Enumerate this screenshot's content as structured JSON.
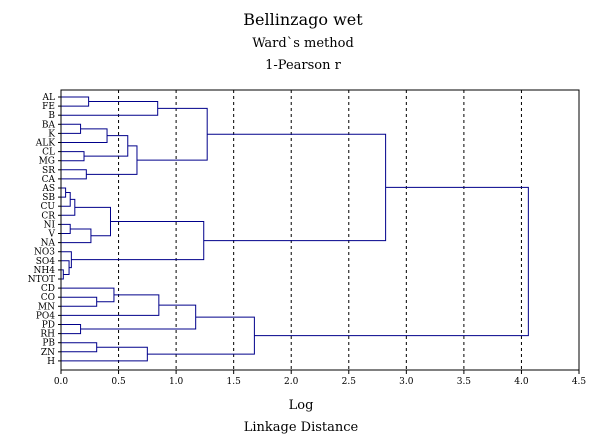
{
  "chart_data": {
    "type": "dendrogram",
    "title": "Bellinzago wet",
    "subtitle": "Ward`s method",
    "subtitle2": "1-Pearson r",
    "xlabel": "Log",
    "xlabel2": "Linkage Distance",
    "xlim": [
      0,
      4.5
    ],
    "xticks": [
      "0.0",
      "0.5",
      "1.0",
      "1.5",
      "2.0",
      "2.5",
      "3.0",
      "3.5",
      "4.0",
      "4.5"
    ],
    "grid": "vertical-dashed",
    "line_color": "#00008B",
    "leaves": [
      "AL",
      "FE",
      "B",
      "BA",
      "K",
      "ALK",
      "CL",
      "MG",
      "SR",
      "CA",
      "AS",
      "SB",
      "CU",
      "CR",
      "NI",
      "V",
      "NA",
      "NO3",
      "SO4",
      "NH4",
      "NTOT",
      "CD",
      "CO",
      "MN",
      "PO4",
      "PD",
      "RH",
      "PB",
      "ZN",
      "H"
    ],
    "merges": [
      {
        "id": "m1",
        "a": "AL",
        "b": "FE",
        "height": 0.24
      },
      {
        "id": "m2",
        "a": "m1",
        "b": "B",
        "height": 0.84
      },
      {
        "id": "m3",
        "a": "BA",
        "b": "K",
        "height": 0.17
      },
      {
        "id": "m4",
        "a": "m3",
        "b": "ALK",
        "height": 0.4
      },
      {
        "id": "m5",
        "a": "CL",
        "b": "MG",
        "height": 0.2
      },
      {
        "id": "m6",
        "a": "m4",
        "b": "m5",
        "height": 0.58
      },
      {
        "id": "m7",
        "a": "SR",
        "b": "CA",
        "height": 0.22
      },
      {
        "id": "m8",
        "a": "m6",
        "b": "m7",
        "height": 0.66
      },
      {
        "id": "m9",
        "a": "m2",
        "b": "m8",
        "height": 1.27
      },
      {
        "id": "m10",
        "a": "AS",
        "b": "SB",
        "height": 0.04
      },
      {
        "id": "m11",
        "a": "m10",
        "b": "CU",
        "height": 0.08
      },
      {
        "id": "m12",
        "a": "m11",
        "b": "CR",
        "height": 0.12
      },
      {
        "id": "m13",
        "a": "NI",
        "b": "V",
        "height": 0.08
      },
      {
        "id": "m14",
        "a": "m13",
        "b": "NA",
        "height": 0.26
      },
      {
        "id": "m15",
        "a": "m12",
        "b": "m14",
        "height": 0.43
      },
      {
        "id": "m16",
        "a": "NH4",
        "b": "NTOT",
        "height": 0.02
      },
      {
        "id": "m17",
        "a": "SO4",
        "b": "m16",
        "height": 0.07
      },
      {
        "id": "m18",
        "a": "NO3",
        "b": "m17",
        "height": 0.09
      },
      {
        "id": "m19",
        "a": "m15",
        "b": "m18",
        "height": 1.24
      },
      {
        "id": "m20",
        "a": "m9",
        "b": "m19",
        "height": 2.82
      },
      {
        "id": "m21",
        "a": "CO",
        "b": "MN",
        "height": 0.31
      },
      {
        "id": "m22",
        "a": "CD",
        "b": "m21",
        "height": 0.46
      },
      {
        "id": "m23",
        "a": "m22",
        "b": "PO4",
        "height": 0.85
      },
      {
        "id": "m24",
        "a": "PD",
        "b": "RH",
        "height": 0.17
      },
      {
        "id": "m25",
        "a": "m23",
        "b": "m24",
        "height": 1.17
      },
      {
        "id": "m26",
        "a": "PB",
        "b": "ZN",
        "height": 0.31
      },
      {
        "id": "m27",
        "a": "m26",
        "b": "H",
        "height": 0.75
      },
      {
        "id": "m28",
        "a": "m25",
        "b": "m27",
        "height": 1.68
      },
      {
        "id": "m29",
        "a": "m20",
        "b": "m28",
        "height": 4.06
      }
    ]
  }
}
